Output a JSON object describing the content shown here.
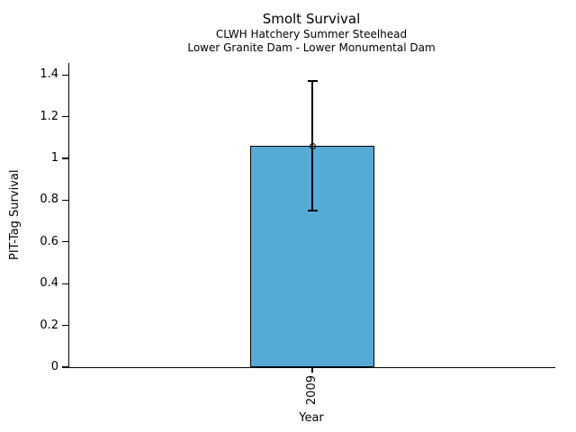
{
  "figure": {
    "background": "#ffffff",
    "text_color": "#000000"
  },
  "chart_data": {
    "type": "bar",
    "title": "Smolt Survival",
    "subtitle_line1": "CLWH Hatchery Summer Steelhead",
    "subtitle_line2": "Lower Granite Dam - Lower Monumental Dam",
    "xlabel": "Year",
    "ylabel": "PIT-Tag Survival",
    "categories": [
      "2009"
    ],
    "values": [
      1.06
    ],
    "error_low": [
      0.75
    ],
    "error_high": [
      1.37
    ],
    "yticks": [
      0,
      0.2,
      0.4,
      0.6,
      0.8,
      1.0,
      1.2,
      1.4
    ],
    "ytick_labels": [
      "0",
      "0.2",
      "0.4",
      "0.6",
      "0.8",
      "1",
      "1.2",
      "1.4"
    ],
    "ylim": [
      0,
      1.457
    ],
    "grid": false,
    "legend": false,
    "bar_color": "#56aad6",
    "bar_edge_color": "#000000",
    "error_color": "#000000",
    "marker": "open-circle"
  }
}
